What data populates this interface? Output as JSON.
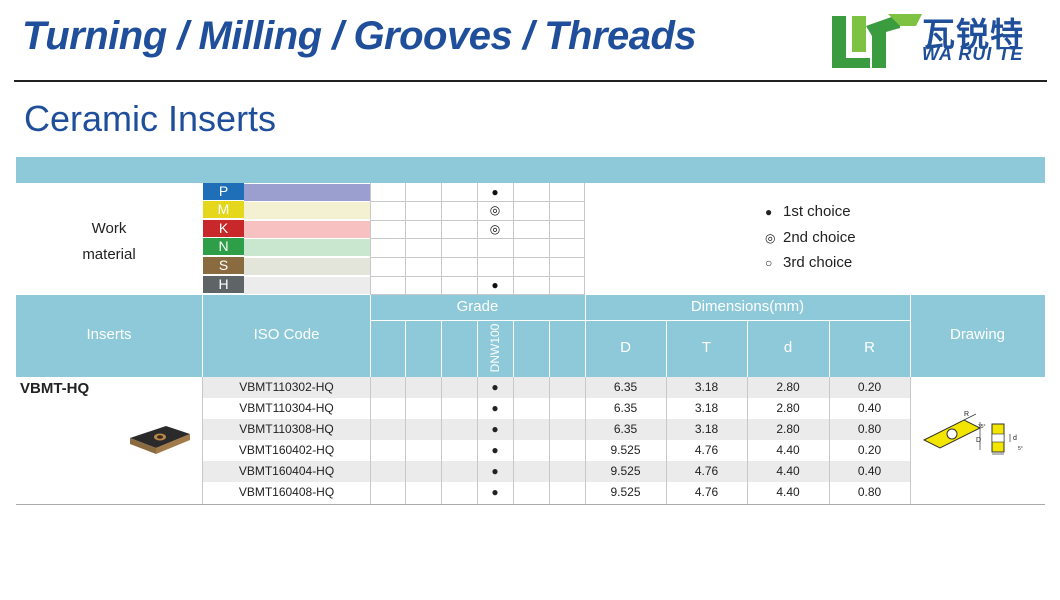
{
  "header": {
    "title": "Turning / Milling / Grooves / Threads",
    "logo_cn": "瓦锐特",
    "logo_en": "WA RUI TE"
  },
  "page_title": "Ceramic Inserts",
  "work_material": {
    "label_line1": "Work",
    "label_line2": "material",
    "materials": [
      {
        "letter": "P",
        "color": "#1f6fb8",
        "band": "#9a9fcf"
      },
      {
        "letter": "M",
        "color": "#e5d71b",
        "band": "#f4f1d2"
      },
      {
        "letter": "K",
        "color": "#c8282a",
        "band": "#f7c0c1"
      },
      {
        "letter": "N",
        "color": "#2e9e49",
        "band": "#c9e6cf"
      },
      {
        "letter": "S",
        "color": "#8a6a3f",
        "band": "#e3e5db"
      },
      {
        "letter": "H",
        "color": "#5f6466",
        "band": "#ececec"
      }
    ],
    "grade_marks": [
      "●",
      "◎",
      "◎",
      "",
      "",
      "●"
    ]
  },
  "legend": [
    {
      "symbol": "●",
      "label": "1st choice"
    },
    {
      "symbol": "◎",
      "label": "2nd choice"
    },
    {
      "symbol": "○",
      "label": "3rd choice"
    }
  ],
  "table": {
    "col_inserts": "Inserts",
    "col_iso": "ISO Code",
    "col_grade": "Grade",
    "grade_name": "DNW100",
    "col_dimensions": "Dimensions(mm)",
    "dim_labels": [
      "D",
      "T",
      "d",
      "R"
    ],
    "col_drawing": "Drawing",
    "insert_name": "VBMT-HQ",
    "rows": [
      {
        "iso": "VBMT110302-HQ",
        "grade": "●",
        "D": "6.35",
        "T": "3.18",
        "d": "2.80",
        "R": "0.20"
      },
      {
        "iso": "VBMT110304-HQ",
        "grade": "●",
        "D": "6.35",
        "T": "3.18",
        "d": "2.80",
        "R": "0.40"
      },
      {
        "iso": "VBMT110308-HQ",
        "grade": "●",
        "D": "6.35",
        "T": "3.18",
        "d": "2.80",
        "R": "0.80"
      },
      {
        "iso": "VBMT160402-HQ",
        "grade": "●",
        "D": "9.525",
        "T": "4.76",
        "d": "4.40",
        "R": "0.20"
      },
      {
        "iso": "VBMT160404-HQ",
        "grade": "●",
        "D": "9.525",
        "T": "4.76",
        "d": "4.40",
        "R": "0.40"
      },
      {
        "iso": "VBMT160408-HQ",
        "grade": "●",
        "D": "9.525",
        "T": "4.76",
        "d": "4.40",
        "R": "0.80"
      }
    ],
    "drawing_labels": {
      "r": "R",
      "d_big": "D",
      "d_small": "d",
      "angle": "35°",
      "clearance": "5°"
    }
  }
}
